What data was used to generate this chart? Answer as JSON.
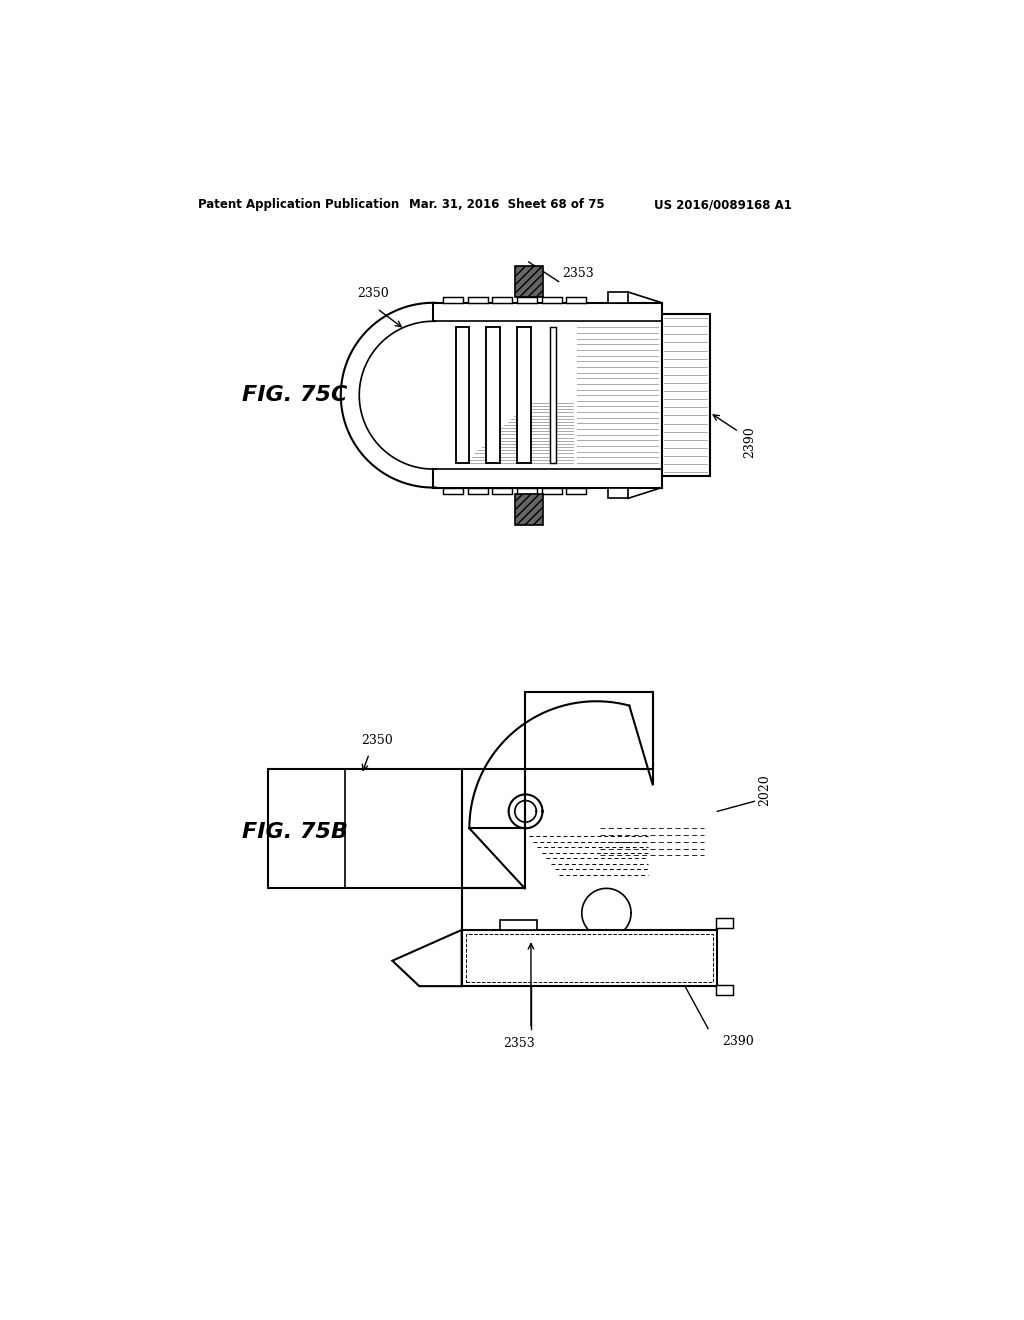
{
  "bg_color": "#ffffff",
  "header_left": "Patent Application Publication",
  "header_mid": "Mar. 31, 2016  Sheet 68 of 75",
  "header_right": "US 2016/0089168 A1",
  "fig_label_75c": "FIG. 75C",
  "fig_label_75b": "FIG. 75B",
  "ref_2350_top": "2350",
  "ref_2353_top": "2353",
  "ref_2390_top": "2390",
  "ref_2350_bot": "2350",
  "ref_2020_bot": "2020",
  "ref_2353_bot": "2353",
  "ref_2390_bot": "2390",
  "line_color": "#000000",
  "line_width": 1.5,
  "dark_gray": "#666666",
  "medium_gray": "#999999",
  "hatch_gray": "#aaaaaa"
}
